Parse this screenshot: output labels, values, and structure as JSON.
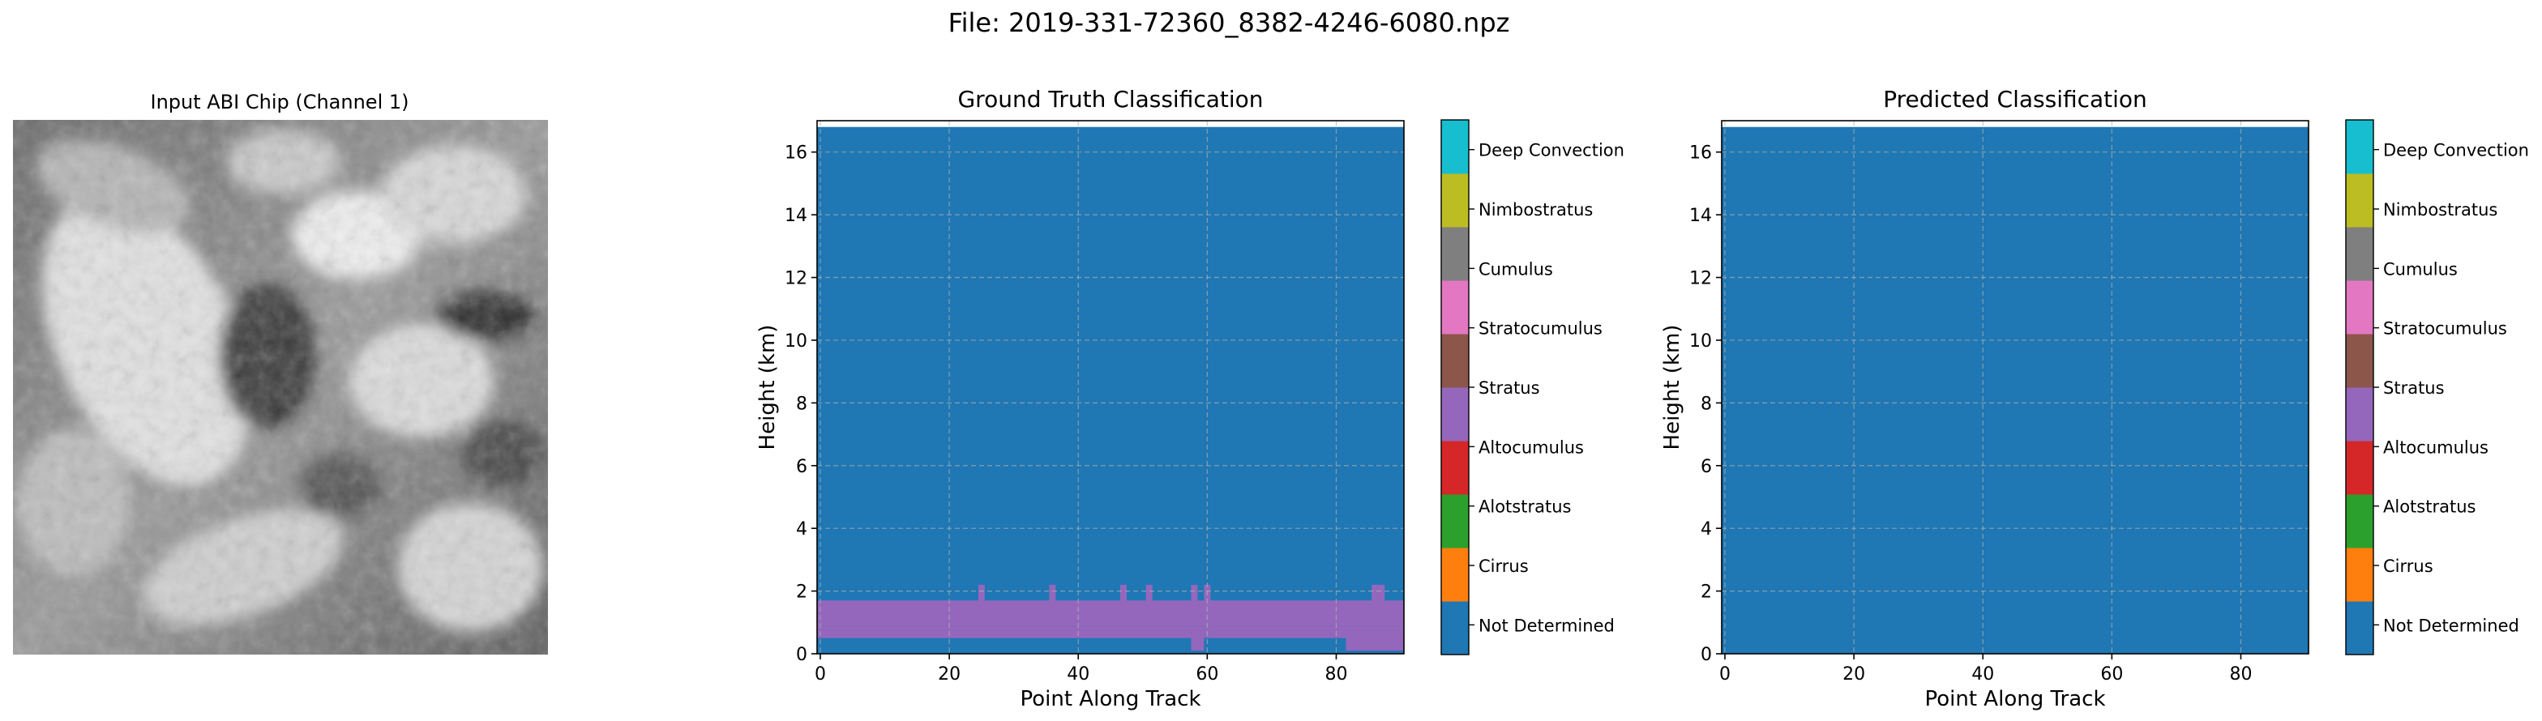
{
  "figure": {
    "suptitle": "File: 2019-331-72360_8382-4246-6080.npz"
  },
  "input_panel": {
    "title": "Input ABI Chip (Channel 1)",
    "image_icon": "grayscale-satellite-chip"
  },
  "classes": [
    {
      "name": "Not Determined",
      "color": "#1f77b4"
    },
    {
      "name": "Cirrus",
      "color": "#ff7f0e"
    },
    {
      "name": "Alotstratus",
      "color": "#2ca02c"
    },
    {
      "name": "Altocumulus",
      "color": "#d62728"
    },
    {
      "name": "Stratus",
      "color": "#8c564b"
    },
    {
      "name": "Stratocumulus",
      "color": "#9467bd"
    },
    {
      "name": "Cumulus",
      "color": "#e377c2"
    },
    {
      "name": "Nimbostratus",
      "color": "#7f7f7f"
    },
    {
      "name": "Deep Convection",
      "color": "#bcbd22"
    }
  ],
  "chart_data": [
    {
      "type": "heatmap",
      "title": "Ground Truth Classification",
      "xlabel": "Point Along Track",
      "ylabel": "Height (km)",
      "xlim": [
        -0.5,
        90.5
      ],
      "ylim": [
        0,
        17
      ],
      "xticks": [
        0,
        20,
        40,
        60,
        80
      ],
      "yticks": [
        0,
        2,
        4,
        6,
        8,
        10,
        12,
        14,
        16
      ],
      "grid": true,
      "background_class": "Not Determined",
      "data_top_km": 16.8,
      "layers": [
        {
          "class": "Stratocumulus",
          "x_range": [
            -0.5,
            90.5
          ],
          "height_range": [
            0.9,
            1.7
          ]
        },
        {
          "class": "Stratocumulus",
          "x_range": [
            -0.5,
            57.5
          ],
          "height_range": [
            0.5,
            0.9
          ]
        },
        {
          "class": "Stratocumulus",
          "x_range": [
            57.5,
            59.5
          ],
          "height_range": [
            0.1,
            0.9
          ]
        },
        {
          "class": "Stratocumulus",
          "x_range": [
            59.5,
            81.5
          ],
          "height_range": [
            0.5,
            0.9
          ]
        },
        {
          "class": "Stratocumulus",
          "x_range": [
            81.5,
            90.5
          ],
          "height_range": [
            0.1,
            0.9
          ]
        }
      ],
      "bumps": [
        {
          "class": "Stratocumulus",
          "x": 25,
          "top_km": 2.2
        },
        {
          "class": "Stratocumulus",
          "x": 36,
          "top_km": 2.2
        },
        {
          "class": "Stratocumulus",
          "x": 47,
          "top_km": 2.2
        },
        {
          "class": "Stratocumulus",
          "x": 51,
          "top_km": 2.2
        },
        {
          "class": "Stratocumulus",
          "x": 58,
          "top_km": 2.2
        },
        {
          "class": "Stratocumulus",
          "x": 60,
          "top_km": 2.2
        },
        {
          "class": "Stratocumulus",
          "x": 86,
          "top_km": 2.2
        },
        {
          "class": "Stratocumulus",
          "x": 87,
          "top_km": 2.2
        }
      ]
    },
    {
      "type": "heatmap",
      "title": "Predicted Classification",
      "xlabel": "Point Along Track",
      "ylabel": "Height (km)",
      "xlim": [
        -0.5,
        90.5
      ],
      "ylim": [
        0,
        17
      ],
      "xticks": [
        0,
        20,
        40,
        60,
        80
      ],
      "yticks": [
        0,
        2,
        4,
        6,
        8,
        10,
        12,
        14,
        16
      ],
      "grid": true,
      "background_class": "Not Determined",
      "data_top_km": 16.8,
      "layers": [],
      "bumps": []
    }
  ]
}
